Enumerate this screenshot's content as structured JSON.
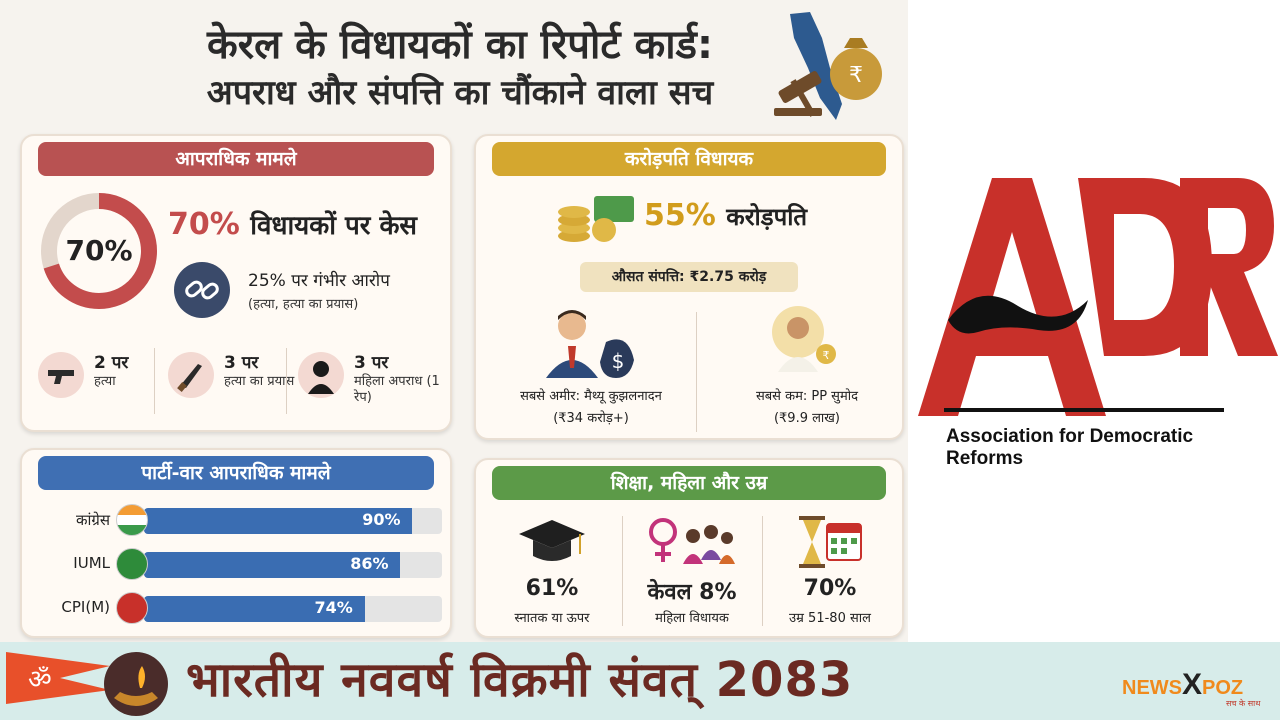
{
  "title": {
    "line1": "केरल के विधायकों का रिपोर्ट कार्ड:",
    "line2": "अपराध और संपत्ति का चौंकाने वाला सच"
  },
  "crime": {
    "heading": "आपराधिक मामले",
    "donut_pct": "70%",
    "donut_fraction": 0.7,
    "headline_pct": "70%",
    "headline_text": "विधायकों पर केस",
    "serious_text": "25% पर गंभीर आरोप",
    "serious_sub": "(हत्या, हत्या का प्रयास)",
    "items": [
      {
        "count": "2 पर",
        "desc": "हत्या",
        "icon": "gun-icon"
      },
      {
        "count": "3 पर",
        "desc": "हत्या का प्रयास",
        "icon": "knife-icon"
      },
      {
        "count": "3 पर",
        "desc": "महिला अपराध (1 रेप)",
        "icon": "woman-silhouette-icon"
      }
    ]
  },
  "rich": {
    "heading": "करोड़पति विधायक",
    "pct": "55%",
    "pct_text": "करोड़पति",
    "avg": "औसत संपत्ति: ₹2.75 करोड़",
    "richest_label": "सबसे अमीर: मैथ्यू कुझलनादन",
    "richest_value": "(₹34 करोड़+)",
    "poorest_label": "सबसे कम: PP सुमोद",
    "poorest_value": "(₹9.9 लाख)"
  },
  "party": {
    "heading": "पार्टी-वार आपराधिक मामले",
    "rows": [
      {
        "name": "कांग्रेस",
        "pct": "90%",
        "value": 90
      },
      {
        "name": "IUML",
        "pct": "86%",
        "value": 86
      },
      {
        "name": "CPI(M)",
        "pct": "74%",
        "value": 74
      }
    ]
  },
  "edu": {
    "heading": "शिक्षा, महिला और उम्र",
    "cols": [
      {
        "value": "61%",
        "label": "स्नातक या ऊपर",
        "icon": "graduation-cap-icon"
      },
      {
        "value": "केवल 8%",
        "label": "महिला विधायक",
        "icon": "women-icon"
      },
      {
        "value": "70%",
        "label": "उम्र 51-80 साल",
        "icon": "hourglass-calendar-icon"
      }
    ]
  },
  "adr": {
    "letters": "ADR",
    "name": "Association for Democratic Reforms"
  },
  "banner": {
    "om": "ॐ",
    "text": "भारतीय नववर्ष विक्रमी संवत् 2083",
    "brand_left": "NEWS",
    "brand_right": "POZ",
    "tagline": "सच के साथ"
  },
  "colors": {
    "crime": "#b85252",
    "rich": "#d4a72f",
    "party": "#3f6fb3",
    "edu": "#5c9a48",
    "adr_red": "#c8302a"
  }
}
